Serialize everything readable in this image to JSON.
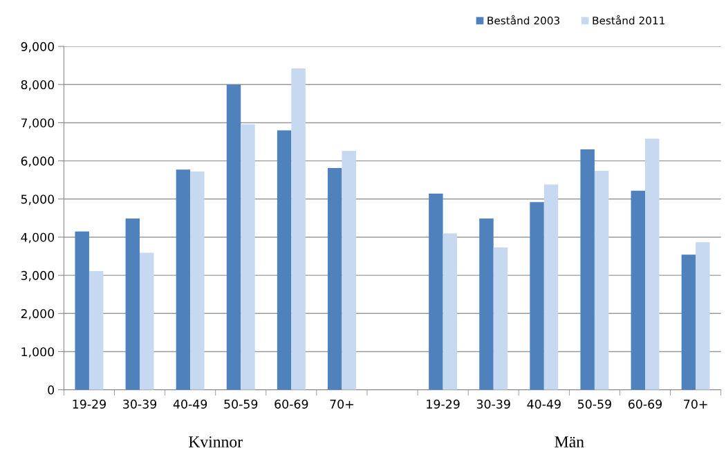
{
  "chart_data": {
    "type": "bar",
    "categories": [
      "19-29",
      "30-39",
      "40-49",
      "50-59",
      "60-69",
      "70+",
      null,
      "19-29",
      "30-39",
      "40-49",
      "50-59",
      "60-69",
      "70+"
    ],
    "series": [
      {
        "name": "Bestånd 2003",
        "color": "#4f81bd",
        "values": [
          4150,
          4490,
          5770,
          8000,
          6800,
          5810,
          null,
          5140,
          4490,
          4920,
          6300,
          5220,
          3540
        ]
      },
      {
        "name": "Bestånd 2011",
        "color": "#c6d9f1",
        "values": [
          3110,
          3590,
          5720,
          6960,
          8420,
          6260,
          null,
          4100,
          3730,
          5380,
          5740,
          6580,
          3870
        ]
      }
    ],
    "ylim": [
      0,
      9000
    ],
    "yticks": [
      {
        "value": 0,
        "label": "0"
      },
      {
        "value": 1000,
        "label": "1,000"
      },
      {
        "value": 2000,
        "label": "2,000"
      },
      {
        "value": 3000,
        "label": "3,000"
      },
      {
        "value": 4000,
        "label": "4,000"
      },
      {
        "value": 5000,
        "label": "5,000"
      },
      {
        "value": 6000,
        "label": "6,000"
      },
      {
        "value": 7000,
        "label": "7,000"
      },
      {
        "value": 8000,
        "label": "8,000"
      },
      {
        "value": 9000,
        "label": "9,000"
      }
    ],
    "grid": "y",
    "legend": "top right",
    "annotations": [
      "Kvinnor",
      "Män"
    ]
  }
}
